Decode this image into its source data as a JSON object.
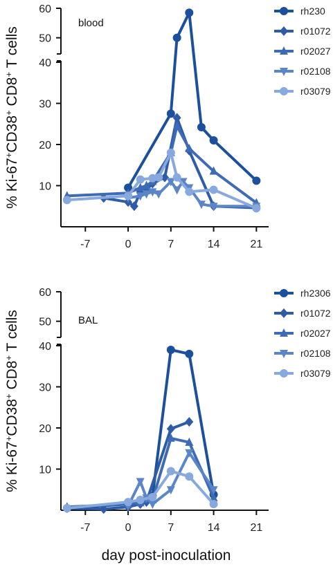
{
  "figure": {
    "xlabel": "day post-inoculation"
  },
  "chart_data": [
    {
      "type": "line",
      "panel_label": "blood",
      "ylabel": "% Ki-67+CD38+ CD8+ T cells",
      "ylabel_parts": [
        "% Ki-67",
        "+",
        "CD38",
        "+",
        " CD8",
        "+",
        " T cells"
      ],
      "xlim": [
        -11,
        23
      ],
      "xticks": [
        -7,
        0,
        7,
        14,
        21
      ],
      "yaxis_segments": [
        {
          "range": [
            0,
            40
          ],
          "ticks": [
            10,
            20,
            30,
            40
          ]
        },
        {
          "range": [
            45,
            60
          ],
          "ticks": [
            50,
            60
          ]
        }
      ],
      "axis_break": true,
      "legend_position": "right",
      "series": [
        {
          "name": "rh230",
          "marker": "circle",
          "color": "#1c4f9c",
          "x": [
            0,
            7,
            8,
            10,
            12,
            14,
            21
          ],
          "y": [
            9.5,
            27.5,
            50,
            58.5,
            24.2,
            21,
            11.2
          ]
        },
        {
          "name": "r01072",
          "marker": "diamond",
          "color": "#2e5ca8",
          "x": [
            -4,
            0,
            1,
            2,
            3,
            4,
            6,
            8,
            10,
            14,
            21
          ],
          "y": [
            7,
            6,
            5,
            8.5,
            9,
            10.5,
            12,
            26.5,
            18.5,
            5,
            4.6
          ]
        },
        {
          "name": "r02027",
          "marker": "triangle-up",
          "color": "#3e6bb5",
          "x": [
            -10,
            0,
            2,
            3,
            4,
            7,
            8,
            10,
            14,
            21
          ],
          "y": [
            7.5,
            8.2,
            9.5,
            10,
            11,
            18,
            24.5,
            19,
            13.5,
            5.8
          ]
        },
        {
          "name": "r02108",
          "marker": "triangle-down",
          "color": "#5a85c7",
          "x": [
            0,
            2,
            3,
            4,
            5,
            7,
            8,
            9,
            10,
            12,
            14,
            21
          ],
          "y": [
            7,
            7.5,
            8,
            8.5,
            8,
            11,
            9,
            11,
            9.5,
            5.5,
            5,
            5
          ]
        },
        {
          "name": "r03079",
          "marker": "circle",
          "color": "#87a9dd",
          "x": [
            -10,
            0,
            2,
            4,
            5,
            7,
            8,
            10,
            14,
            21
          ],
          "y": [
            6.5,
            7.5,
            11.5,
            11.8,
            12,
            18,
            12,
            8.5,
            9,
            4.5
          ]
        }
      ]
    },
    {
      "type": "line",
      "panel_label": "BAL",
      "ylabel": "% Ki-67+CD38+ CD8+ T cells",
      "ylabel_parts": [
        "% Ki-67",
        "+",
        "CD38",
        "+",
        " CD8",
        "+",
        " T cells"
      ],
      "xlim": [
        -11,
        23
      ],
      "xticks": [
        -7,
        0,
        7,
        14,
        21
      ],
      "yaxis_segments": [
        {
          "range": [
            0,
            40
          ],
          "ticks": [
            10,
            20,
            30,
            40
          ]
        },
        {
          "range": [
            45,
            60
          ],
          "ticks": [
            50,
            60
          ]
        }
      ],
      "axis_break": true,
      "legend_position": "right",
      "series": [
        {
          "name": "rh2306",
          "marker": "circle",
          "color": "#1c4f9c",
          "x": [
            -10,
            0,
            2,
            4,
            7,
            10,
            14
          ],
          "y": [
            0.5,
            1.5,
            2.5,
            3.5,
            39,
            38,
            3.8
          ]
        },
        {
          "name": "r01072",
          "marker": "diamond",
          "color": "#2e5ca8",
          "x": [
            -10,
            -4,
            0,
            2,
            3,
            7,
            10
          ],
          "y": [
            0.5,
            0.3,
            0.8,
            1.5,
            2,
            19.8,
            21.5
          ]
        },
        {
          "name": "r02027",
          "marker": "triangle-up",
          "color": "#3e6bb5",
          "x": [
            -10,
            0,
            2,
            4,
            7,
            10,
            14
          ],
          "y": [
            0.8,
            1.5,
            1.8,
            2.5,
            17.5,
            16.5,
            3
          ]
        },
        {
          "name": "r02108",
          "marker": "triangle-down",
          "color": "#5a85c7",
          "x": [
            0,
            2,
            3,
            4,
            7,
            10,
            14
          ],
          "y": [
            1,
            7,
            3,
            1.5,
            5,
            14,
            5
          ]
        },
        {
          "name": "r03079",
          "marker": "circle",
          "color": "#87a9dd",
          "x": [
            -10,
            0,
            2,
            4,
            7,
            10,
            14
          ],
          "y": [
            0.5,
            2,
            2.5,
            3.2,
            9.5,
            8.2,
            1.5
          ]
        }
      ]
    }
  ]
}
